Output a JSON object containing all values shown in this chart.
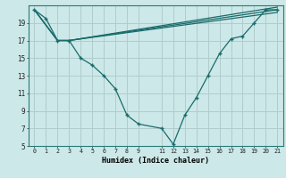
{
  "xlabel": "Humidex (Indice chaleur)",
  "ylabel": "",
  "background_color": "#cce8e8",
  "grid_color": "#b0cccc",
  "line_color": "#1a6b6b",
  "xlim": [
    -0.5,
    21.5
  ],
  "ylim": [
    5,
    21
  ],
  "xticks": [
    0,
    1,
    2,
    3,
    4,
    5,
    6,
    7,
    8,
    9,
    11,
    12,
    13,
    14,
    15,
    16,
    17,
    18,
    19,
    20,
    21
  ],
  "yticks": [
    5,
    7,
    9,
    11,
    13,
    15,
    17,
    19
  ],
  "line1_x": [
    0,
    1,
    2,
    3,
    4,
    5,
    6,
    7,
    8,
    9,
    11,
    12,
    13,
    14,
    15,
    16,
    17,
    18,
    19,
    20,
    21
  ],
  "line1_y": [
    20.5,
    19.5,
    17,
    17,
    15,
    14.2,
    13,
    11.5,
    8.5,
    7.5,
    7,
    5.2,
    8.5,
    10.5,
    13,
    15.5,
    17.2,
    17.5,
    19,
    20.5,
    20.5
  ],
  "line2_x": [
    0,
    2,
    3,
    21
  ],
  "line2_y": [
    20.5,
    17,
    17,
    20.8
  ],
  "line3_x": [
    0,
    2,
    3,
    21
  ],
  "line3_y": [
    20.5,
    17,
    17,
    20.5
  ],
  "line4_x": [
    0,
    2,
    3,
    21
  ],
  "line4_y": [
    20.5,
    17,
    17,
    20.2
  ]
}
